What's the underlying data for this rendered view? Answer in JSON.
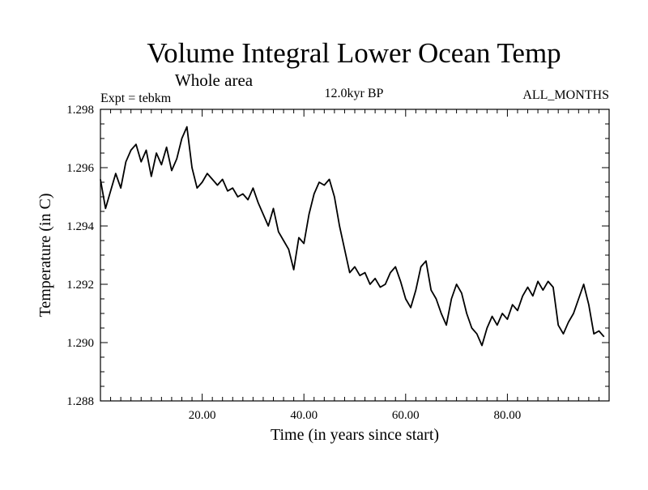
{
  "chart_data": {
    "type": "line",
    "title": "Volume Integral Lower Ocean Temp",
    "subtitle": "Whole area",
    "experiment": "Expt = tebkm",
    "period": "12.0kyr BP",
    "months": "ALL_MONTHS",
    "xlabel": "Time (in years since start)",
    "ylabel": "Temperature (in C)",
    "xlim": [
      0,
      100
    ],
    "ylim": [
      1.288,
      1.298
    ],
    "xticks": [
      20,
      40,
      60,
      80
    ],
    "xtick_labels": [
      "20.00",
      "40.00",
      "60.00",
      "80.00"
    ],
    "yticks": [
      1.288,
      1.29,
      1.292,
      1.294,
      1.296,
      1.298
    ],
    "ytick_labels": [
      "1.288",
      "1.290",
      "1.292",
      "1.294",
      "1.296",
      "1.298"
    ],
    "grid": false,
    "series": [
      {
        "name": "tebkm",
        "color": "#000000",
        "x": [
          0,
          1,
          2,
          3,
          4,
          5,
          6,
          7,
          8,
          9,
          10,
          11,
          12,
          13,
          14,
          15,
          16,
          17,
          18,
          19,
          20,
          21,
          22,
          23,
          24,
          25,
          26,
          27,
          28,
          29,
          30,
          31,
          32,
          33,
          34,
          35,
          36,
          37,
          38,
          39,
          40,
          41,
          42,
          43,
          44,
          45,
          46,
          47,
          48,
          49,
          50,
          51,
          52,
          53,
          54,
          55,
          56,
          57,
          58,
          59,
          60,
          61,
          62,
          63,
          64,
          65,
          66,
          67,
          68,
          69,
          70,
          71,
          72,
          73,
          74,
          75,
          76,
          77,
          78,
          79,
          80,
          81,
          82,
          83,
          84,
          85,
          86,
          87,
          88,
          89,
          90,
          91,
          92,
          93,
          94,
          95,
          96,
          97,
          98,
          99
        ],
        "y": [
          1.2956,
          1.2946,
          1.2952,
          1.2958,
          1.2953,
          1.2962,
          1.2966,
          1.2968,
          1.2962,
          1.2966,
          1.2957,
          1.2965,
          1.2961,
          1.2967,
          1.2959,
          1.2963,
          1.297,
          1.2974,
          1.296,
          1.2953,
          1.2955,
          1.2958,
          1.2956,
          1.2954,
          1.2956,
          1.2952,
          1.2953,
          1.295,
          1.2951,
          1.2949,
          1.2953,
          1.2948,
          1.2944,
          1.294,
          1.2946,
          1.2938,
          1.2935,
          1.2932,
          1.2925,
          1.2936,
          1.2934,
          1.2944,
          1.2951,
          1.2955,
          1.2954,
          1.2956,
          1.295,
          1.294,
          1.2932,
          1.2924,
          1.2926,
          1.2923,
          1.2924,
          1.292,
          1.2922,
          1.2919,
          1.292,
          1.2924,
          1.2926,
          1.2921,
          1.2915,
          1.2912,
          1.2918,
          1.2926,
          1.2928,
          1.2918,
          1.2915,
          1.291,
          1.2906,
          1.2915,
          1.292,
          1.2917,
          1.291,
          1.2905,
          1.2903,
          1.2899,
          1.2905,
          1.2909,
          1.2906,
          1.291,
          1.2908,
          1.2913,
          1.2911,
          1.2916,
          1.2919,
          1.2916,
          1.2921,
          1.2918,
          1.2921,
          1.2919,
          1.2906,
          1.2903,
          1.2907,
          1.291,
          1.2915,
          1.292,
          1.2913,
          1.2903,
          1.2904,
          1.2902
        ]
      }
    ]
  }
}
